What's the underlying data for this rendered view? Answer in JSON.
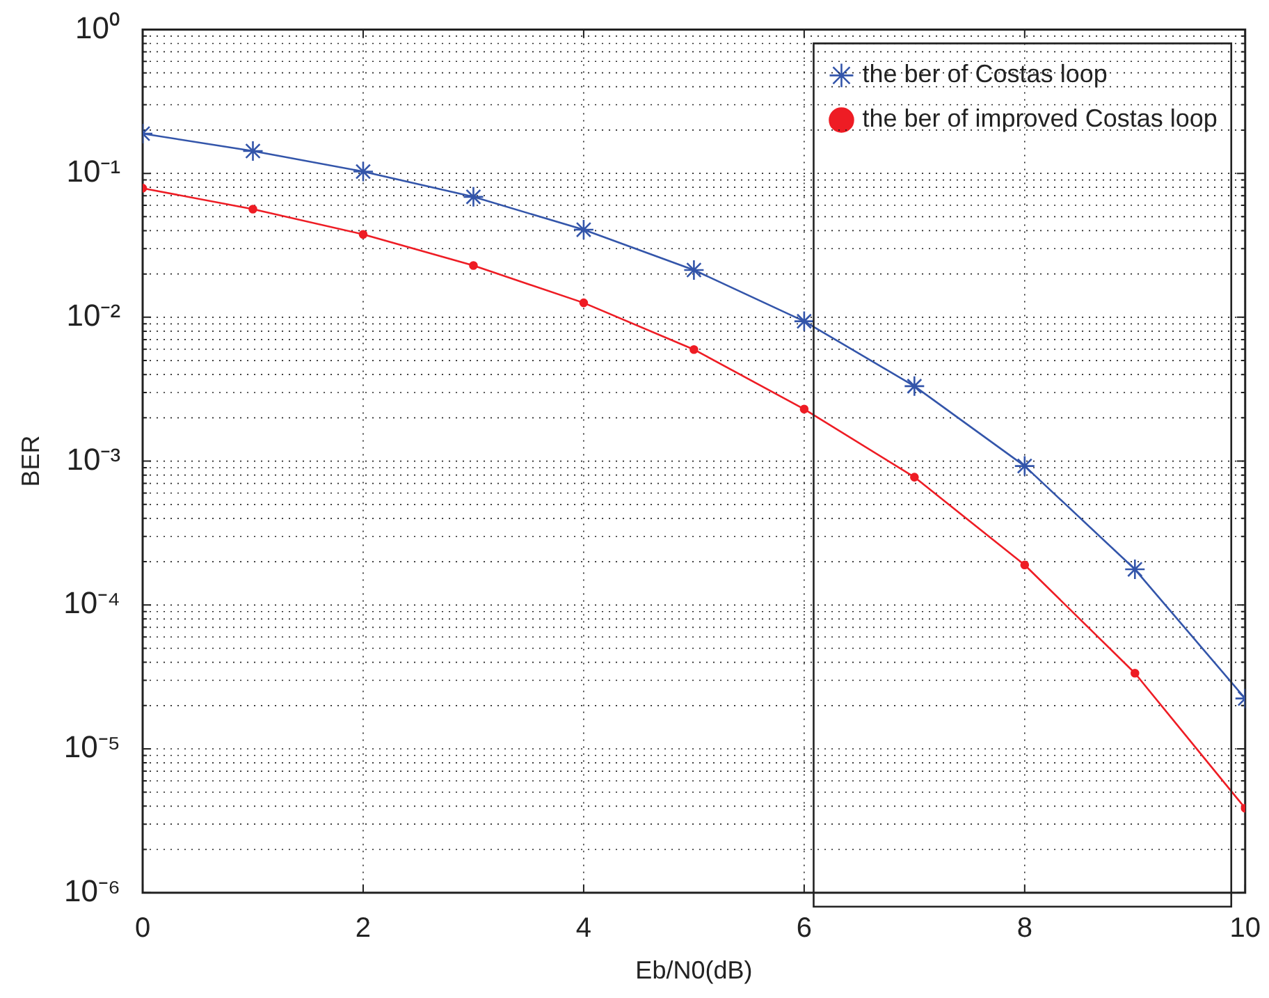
{
  "chart_data": {
    "type": "line",
    "xlabel": "Eb/N0(dB)",
    "ylabel": "BER",
    "x": [
      0,
      1,
      2,
      3,
      4,
      5,
      6,
      7,
      8,
      9,
      10
    ],
    "series": [
      {
        "name": "the ber of Costas loop",
        "color": "#3355aa",
        "marker": "cross",
        "values": [
          0.189,
          0.143,
          0.103,
          0.0687,
          0.0406,
          0.0213,
          0.00938,
          0.00332,
          0.000925,
          0.000177,
          2.24e-05
        ]
      },
      {
        "name": "the ber of improved Costas loop",
        "color": "#ee1c24",
        "marker": "circle",
        "values": [
          0.0789,
          0.0564,
          0.0377,
          0.0229,
          0.0126,
          0.00597,
          0.0023,
          0.000774,
          0.00019,
          3.36e-05,
          3.87e-06
        ]
      }
    ],
    "xlim": [
      0,
      10
    ],
    "xticks": [
      0,
      2,
      4,
      6,
      8,
      10
    ],
    "ylim": [
      1e-06,
      1
    ],
    "yticks": [
      {
        "value": 1e-06,
        "label": "10⁻⁶"
      },
      {
        "value": 1e-05,
        "label": "10⁻⁵"
      },
      {
        "value": 0.0001,
        "label": "10⁻⁴"
      },
      {
        "value": 0.001,
        "label": "10⁻³"
      },
      {
        "value": 0.01,
        "label": "10⁻²"
      },
      {
        "value": 0.1,
        "label": "10⁻¹"
      },
      {
        "value": 1,
        "label": "10⁰"
      }
    ],
    "log": "y",
    "grid": true,
    "legend": "top right",
    "line_style": "solid"
  }
}
